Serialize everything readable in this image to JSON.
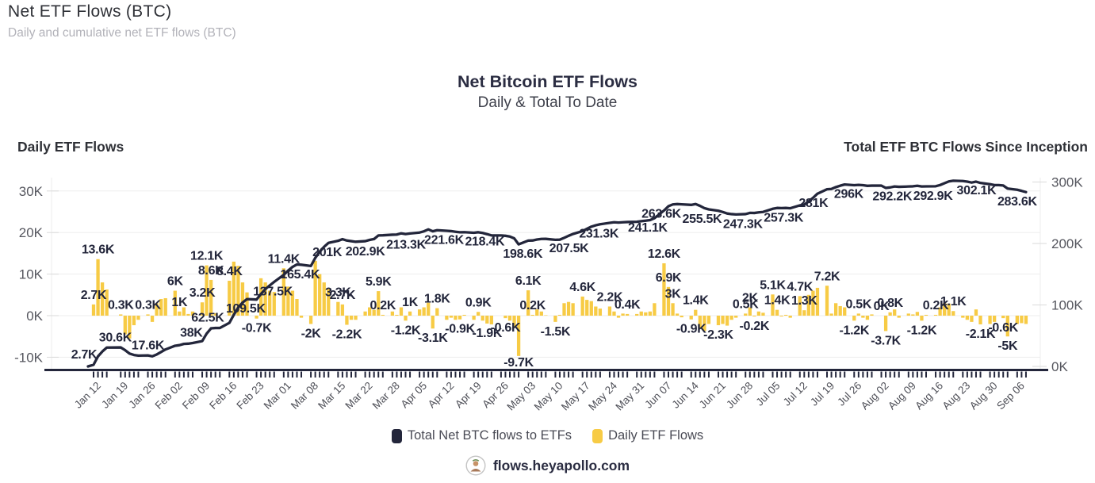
{
  "header": {
    "title": "Net ETF Flows (BTC)",
    "subtitle": "Daily and cumulative net ETF flows (BTC)"
  },
  "chart_data": {
    "type": "bar+line",
    "title": "Net Bitcoin ETF Flows",
    "subtitle": "Daily & Total To Date",
    "units": "thousands of BTC",
    "bar_series_name": "Daily ETF Flows",
    "line_series_name": "Total Net BTC flows to ETFs",
    "bar_color": "#F7CB45",
    "line_color": "#23263B",
    "grid": true,
    "left_axis": {
      "title": "Daily ETF Flows",
      "ticks": [
        "30K",
        "20K",
        "10K",
        "0K",
        "-10K"
      ],
      "range": [
        -12,
        33
      ]
    },
    "right_axis": {
      "title": "Total ETF BTC Flows Since Inception",
      "ticks": [
        "300K",
        "200K",
        "100K",
        "0K"
      ],
      "range": [
        0,
        315
      ]
    },
    "weeks": [
      {
        "date": "Jan 12",
        "daily": [
          2.7,
          13.6,
          8.0,
          6.3
        ]
      },
      {
        "date": "Jan 19",
        "daily": [
          0.3,
          -4.5,
          -5.5,
          -2.3,
          -1.0
        ]
      },
      {
        "date": "Jan 26",
        "daily": [
          0.3,
          -1.5,
          3.0,
          4.0,
          4.2
        ]
      },
      {
        "date": "Feb 02",
        "daily": [
          6.0,
          1.0,
          2.0,
          0.4,
          1.0
        ]
      },
      {
        "date": "Feb 09",
        "daily": [
          3.2,
          12.1,
          8.6,
          0.6,
          0.0
        ]
      },
      {
        "date": "Feb 16",
        "daily": [
          8.4,
          13.0,
          12.0,
          8.0,
          5.6
        ]
      },
      {
        "date": "Feb 23",
        "daily": [
          -0.7,
          9.0,
          8.0,
          6.0,
          5.7
        ]
      },
      {
        "date": "Mar 01",
        "daily": [
          11.4,
          7.0,
          6.0,
          4.0,
          -0.5
        ]
      },
      {
        "date": "Mar 08",
        "daily": [
          -2.0,
          13.2,
          10.0,
          8.0,
          6.4
        ]
      },
      {
        "date": "Mar 15",
        "daily": [
          3.3,
          2.7,
          -2.2,
          -1.0,
          -1.0
        ]
      },
      {
        "date": "Mar 22",
        "daily": [
          1.0,
          2.0,
          1.4,
          5.9,
          0.2
        ]
      },
      {
        "date": "Mar 28",
        "daily": [
          1.0,
          0.2,
          2.0,
          -1.2,
          1.0
        ]
      },
      {
        "date": "Apr 05",
        "daily": [
          1.5,
          2.0,
          3.1,
          -3.1,
          1.8
        ]
      },
      {
        "date": "Apr 12",
        "daily": [
          -1.0,
          -0.5,
          -1.0,
          -0.9,
          0.2
        ]
      },
      {
        "date": "Apr 19",
        "daily": [
          -1.0,
          0.9,
          -1.2,
          -1.9,
          -2.1
        ]
      },
      {
        "date": "Apr 26",
        "daily": [
          0.0,
          -0.6,
          -1.2,
          -3.0,
          -9.7
        ]
      },
      {
        "date": "May 03",
        "daily": [
          6.1,
          0.2,
          1.5,
          1.0,
          0.1
        ]
      },
      {
        "date": "May 10",
        "daily": [
          -1.5,
          0.2,
          3.0,
          3.3,
          3.0
        ]
      },
      {
        "date": "May 17",
        "daily": [
          4.6,
          3.8,
          3.5,
          2.2,
          1.7
        ]
      },
      {
        "date": "May 24",
        "daily": [
          2.2,
          1.0,
          -0.5,
          0.5,
          0.4
        ]
      },
      {
        "date": "May 31",
        "daily": [
          0.4,
          1.0,
          0.8,
          1.0,
          3.0
        ]
      },
      {
        "date": "Jun 07",
        "daily": [
          12.6,
          6.9,
          3.0,
          0.5,
          -0.4
        ]
      },
      {
        "date": "Jun 14",
        "daily": [
          -0.9,
          1.4,
          -3.0,
          -3.7,
          -2.0
        ]
      },
      {
        "date": "Jun 21",
        "daily": [
          -2.3,
          -2.0,
          -2.4,
          -1.0,
          -0.5
        ]
      },
      {
        "date": "Jun 28",
        "daily": [
          0.5,
          2.0,
          -0.2,
          1.0,
          0.7
        ]
      },
      {
        "date": "Jul 05",
        "daily": [
          5.1,
          1.4,
          -0.2,
          0.2,
          -0.5
        ]
      },
      {
        "date": "Jul 12",
        "daily": [
          4.7,
          1.3,
          5.0,
          6.0,
          6.7
        ]
      },
      {
        "date": "Jul 19",
        "daily": [
          7.2,
          0.5,
          3.0,
          2.3,
          2.0
        ]
      },
      {
        "date": "Jul 26",
        "daily": [
          -1.2,
          0.5,
          -0.5,
          -1.0,
          0.3
        ]
      },
      {
        "date": "Aug 02",
        "daily": [
          0.0,
          -3.7,
          0.8,
          1.5,
          -0.5
        ]
      },
      {
        "date": "Aug 09",
        "daily": [
          0.5,
          0.3,
          0.9,
          -1.2,
          0.2
        ]
      },
      {
        "date": "Aug 16",
        "daily": [
          0.2,
          2.0,
          3.0,
          2.9,
          1.1
        ]
      },
      {
        "date": "Aug 23",
        "daily": [
          -0.5,
          -1.0,
          -1.5,
          1.5,
          -2.1
        ]
      },
      {
        "date": "Aug 30",
        "daily": [
          -2.0,
          -1.5,
          0.0,
          -0.6,
          -5.0
        ]
      },
      {
        "date": "Sep 06",
        "daily": [
          -2.0,
          -1.8,
          -2.0
        ]
      }
    ],
    "bar_labels": [
      {
        "week": 0,
        "day": 0,
        "text": "2.7K"
      },
      {
        "week": 0,
        "day": 1,
        "text": "13.6K"
      },
      {
        "week": 1,
        "day": 0,
        "text": "0.3K"
      },
      {
        "week": 2,
        "day": 0,
        "text": "0.3K"
      },
      {
        "week": 3,
        "day": 0,
        "text": "6K"
      },
      {
        "week": 3,
        "day": 1,
        "text": "1K"
      },
      {
        "week": 4,
        "day": 0,
        "text": "3.2K"
      },
      {
        "week": 4,
        "day": 1,
        "text": "12.1K"
      },
      {
        "week": 4,
        "day": 2,
        "text": "8.6K"
      },
      {
        "week": 5,
        "day": 0,
        "text": "8.4K"
      },
      {
        "week": 6,
        "day": 0,
        "text": "-0.7K"
      },
      {
        "week": 7,
        "day": 0,
        "text": "11.4K"
      },
      {
        "week": 8,
        "day": 0,
        "text": "-2K"
      },
      {
        "week": 9,
        "day": 0,
        "text": "3.3K"
      },
      {
        "week": 9,
        "day": 1,
        "text": "2.7K"
      },
      {
        "week": 9,
        "day": 2,
        "text": "-2.2K"
      },
      {
        "week": 10,
        "day": 3,
        "text": "5.9K"
      },
      {
        "week": 10,
        "day": 4,
        "text": "0.2K"
      },
      {
        "week": 11,
        "day": 3,
        "text": "-1.2K"
      },
      {
        "week": 11,
        "day": 4,
        "text": "1K"
      },
      {
        "week": 12,
        "day": 3,
        "text": "-3.1K"
      },
      {
        "week": 12,
        "day": 4,
        "text": "1.8K"
      },
      {
        "week": 13,
        "day": 3,
        "text": "-0.9K"
      },
      {
        "week": 14,
        "day": 1,
        "text": "0.9K"
      },
      {
        "week": 14,
        "day": 3,
        "text": "-1.9K"
      },
      {
        "week": 15,
        "day": 1,
        "text": "-0.6K"
      },
      {
        "week": 15,
        "day": 4,
        "text": "-9.7K"
      },
      {
        "week": 16,
        "day": 0,
        "text": "6.1K"
      },
      {
        "week": 16,
        "day": 1,
        "text": "0.2K"
      },
      {
        "week": 17,
        "day": 0,
        "text": "-1.5K"
      },
      {
        "week": 18,
        "day": 0,
        "text": "4.6K"
      },
      {
        "week": 19,
        "day": 0,
        "text": "2.2K"
      },
      {
        "week": 19,
        "day": 4,
        "text": "0.4K"
      },
      {
        "week": 21,
        "day": 0,
        "text": "12.6K"
      },
      {
        "week": 21,
        "day": 1,
        "text": "6.9K"
      },
      {
        "week": 21,
        "day": 2,
        "text": "3K"
      },
      {
        "week": 22,
        "day": 0,
        "text": "-0.9K"
      },
      {
        "week": 22,
        "day": 1,
        "text": "1.4K"
      },
      {
        "week": 23,
        "day": 0,
        "text": "-2.3K"
      },
      {
        "week": 24,
        "day": 0,
        "text": "0.5K"
      },
      {
        "week": 24,
        "day": 1,
        "text": "2K"
      },
      {
        "week": 24,
        "day": 2,
        "text": "-0.2K"
      },
      {
        "week": 25,
        "day": 0,
        "text": "5.1K"
      },
      {
        "week": 25,
        "day": 1,
        "text": "1.4K"
      },
      {
        "week": 26,
        "day": 0,
        "text": "4.7K"
      },
      {
        "week": 26,
        "day": 1,
        "text": "1.3K"
      },
      {
        "week": 27,
        "day": 0,
        "text": "7.2K"
      },
      {
        "week": 28,
        "day": 0,
        "text": "-1.2K"
      },
      {
        "week": 28,
        "day": 1,
        "text": "0.5K"
      },
      {
        "week": 29,
        "day": 0,
        "text": "0K"
      },
      {
        "week": 29,
        "day": 1,
        "text": "-3.7K"
      },
      {
        "week": 29,
        "day": 2,
        "text": "0.8K"
      },
      {
        "week": 30,
        "day": 3,
        "text": "-1.2K"
      },
      {
        "week": 31,
        "day": 0,
        "text": "0.2K"
      },
      {
        "week": 31,
        "day": 4,
        "text": "1.1K"
      },
      {
        "week": 32,
        "day": 4,
        "text": "-2.1K"
      },
      {
        "week": 33,
        "day": 3,
        "text": "-0.6K"
      },
      {
        "week": 33,
        "day": 4,
        "text": "-5K"
      }
    ],
    "line_labels": [
      {
        "text": "2.7K",
        "value": 2.7,
        "week_pos": -0.35,
        "side": "above"
      },
      {
        "text": "30.6K",
        "value": 30.6,
        "week_pos": 0.8,
        "side": "above"
      },
      {
        "text": "17.6K",
        "value": 17.6,
        "week_pos": 2.0,
        "side": "above"
      },
      {
        "text": "38K",
        "value": 38,
        "week_pos": 3.6,
        "side": "above"
      },
      {
        "text": "62.5K",
        "value": 62.5,
        "week_pos": 4.2,
        "side": "above"
      },
      {
        "text": "109.5K",
        "value": 109.5,
        "week_pos": 5.6,
        "side": "below"
      },
      {
        "text": "137.5K",
        "value": 137.5,
        "week_pos": 6.6,
        "side": "below"
      },
      {
        "text": "165.4K",
        "value": 165.4,
        "week_pos": 7.6,
        "side": "below"
      },
      {
        "text": "201K",
        "value": 201,
        "week_pos": 8.6,
        "side": "below"
      },
      {
        "text": "202.9K",
        "value": 202.9,
        "week_pos": 10.0,
        "side": "below"
      },
      {
        "text": "213.3K",
        "value": 213.3,
        "week_pos": 11.5,
        "side": "below"
      },
      {
        "text": "221.6K",
        "value": 221.6,
        "week_pos": 12.9,
        "side": "below"
      },
      {
        "text": "218.4K",
        "value": 218.4,
        "week_pos": 14.4,
        "side": "below"
      },
      {
        "text": "198.6K",
        "value": 198.6,
        "week_pos": 15.8,
        "side": "below"
      },
      {
        "text": "207.5K",
        "value": 207.5,
        "week_pos": 17.5,
        "side": "below"
      },
      {
        "text": "231.3K",
        "value": 231.3,
        "week_pos": 18.6,
        "side": "below"
      },
      {
        "text": "241.1K",
        "value": 241.1,
        "week_pos": 20.4,
        "side": "below"
      },
      {
        "text": "263.6K",
        "value": 263.6,
        "week_pos": 20.9,
        "side": "below"
      },
      {
        "text": "255.5K",
        "value": 255.5,
        "week_pos": 22.4,
        "side": "below"
      },
      {
        "text": "247.3K",
        "value": 247.3,
        "week_pos": 23.9,
        "side": "below"
      },
      {
        "text": "257.3K",
        "value": 257.3,
        "week_pos": 25.4,
        "side": "below"
      },
      {
        "text": "281K",
        "value": 281,
        "week_pos": 26.5,
        "side": "below"
      },
      {
        "text": "296K",
        "value": 296,
        "week_pos": 27.8,
        "side": "below"
      },
      {
        "text": "292.2K",
        "value": 292.2,
        "week_pos": 29.4,
        "side": "below"
      },
      {
        "text": "292.9K",
        "value": 292.9,
        "week_pos": 30.9,
        "side": "below"
      },
      {
        "text": "302.1K",
        "value": 302.1,
        "week_pos": 32.5,
        "side": "below"
      },
      {
        "text": "283.6K",
        "value": 283.6,
        "week_pos": 34.0,
        "side": "below"
      }
    ]
  },
  "legend": {
    "items": [
      {
        "label": "Total Net BTC flows to ETFs",
        "color": "#23263B"
      },
      {
        "label": "Daily ETF Flows",
        "color": "#F7CB45"
      }
    ]
  },
  "footer": {
    "site": "flows.heyapollo.com"
  }
}
